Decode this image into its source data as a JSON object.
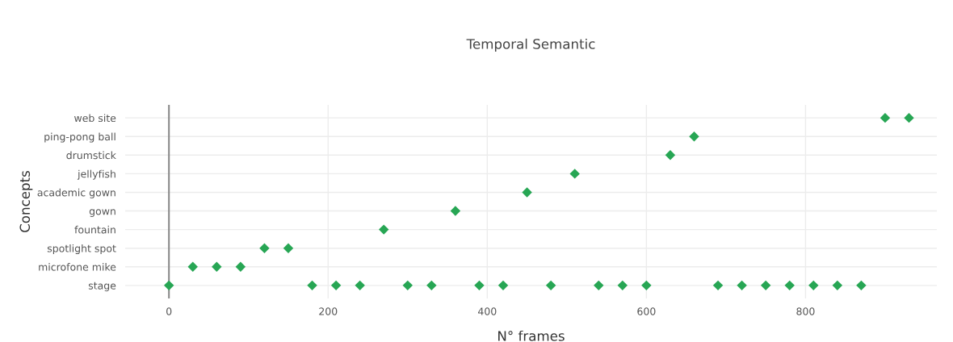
{
  "chart_data": {
    "type": "scatter",
    "orientation": "horizontal",
    "title": "Temporal Semantic",
    "xlabel": "N° frames",
    "ylabel": "Concepts",
    "categories": [
      "web site",
      "ping-pong ball",
      "drumstick",
      "jellyfish",
      "academic gown",
      "gown",
      "fountain",
      "spotlight spot",
      "microfone mike",
      "stage"
    ],
    "series": [
      {
        "color": "#27a654",
        "x": [
          "stage",
          "microfone mike",
          "microfone mike",
          "microfone mike",
          "spotlight spot",
          "spotlight spot",
          "stage",
          "stage",
          "stage",
          "fountain",
          "stage",
          "stage",
          "gown",
          "stage",
          "stage",
          "academic gown",
          "stage",
          "jellyfish",
          "stage",
          "stage",
          "stage",
          "drumstick",
          "ping-pong ball",
          "stage",
          "stage",
          "stage",
          "stage",
          "stage",
          "stage",
          "stage",
          "web site",
          "web site"
        ],
        "values": [
          0,
          30,
          60,
          90,
          120,
          150,
          180,
          210,
          240,
          270,
          300,
          330,
          360,
          390,
          420,
          450,
          480,
          510,
          540,
          570,
          600,
          630,
          660,
          690,
          720,
          750,
          780,
          810,
          840,
          870,
          900,
          930
        ]
      }
    ],
    "xlim": [
      -55,
      965
    ],
    "xticks": [
      0,
      200,
      400,
      600,
      800
    ],
    "ref_lines": [
      {
        "axis": "x",
        "value": 0,
        "color": "#8a8a8a"
      }
    ],
    "marker": "diamond",
    "grid": true
  }
}
